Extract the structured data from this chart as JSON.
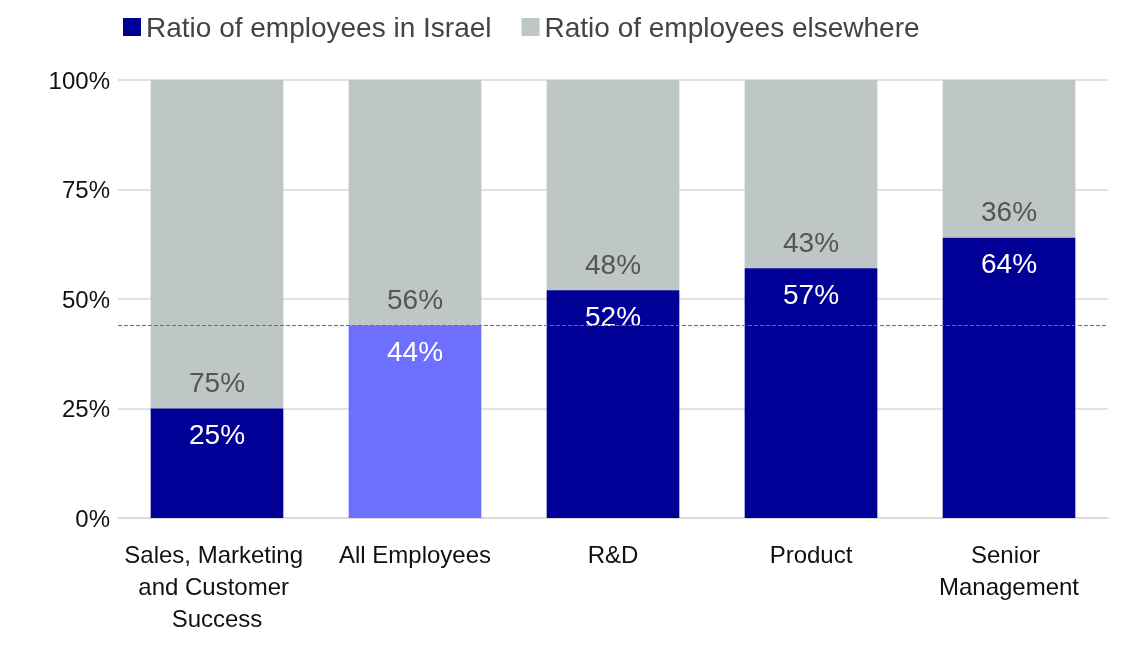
{
  "chart_data": {
    "type": "bar",
    "stacked": true,
    "categories": [
      "Sales, Marketing and Customer Success",
      "All Employees",
      "R&D",
      "Product",
      "Senior Management"
    ],
    "series": [
      {
        "name": "Ratio of employees in Israel",
        "color": "#000096",
        "colors": [
          "#000096",
          "#6e6eff",
          "#000096",
          "#000096",
          "#000096"
        ],
        "values": [
          25,
          44,
          52,
          57,
          64
        ],
        "value_labels": [
          "25%",
          "44%",
          "52%",
          "57%",
          "64%"
        ]
      },
      {
        "name": "Ratio of employees elsewhere",
        "color": "#bec6c6",
        "values": [
          75,
          56,
          48,
          43,
          36
        ],
        "value_labels": [
          "75%",
          "56%",
          "48%",
          "43%",
          "36%"
        ]
      }
    ],
    "ylim": [
      0,
      100
    ],
    "yticks": [
      {
        "value": 0,
        "label": "0%"
      },
      {
        "value": 25,
        "label": "25%"
      },
      {
        "value": 50,
        "label": "50%"
      },
      {
        "value": 75,
        "label": "75%"
      },
      {
        "value": 100,
        "label": "100%"
      }
    ],
    "grid": "y",
    "legend": "top left",
    "ref_lines": [
      {
        "axis": "y",
        "value": 44,
        "label": null,
        "color": "#6060e0",
        "line_style": "dashed"
      }
    ]
  }
}
